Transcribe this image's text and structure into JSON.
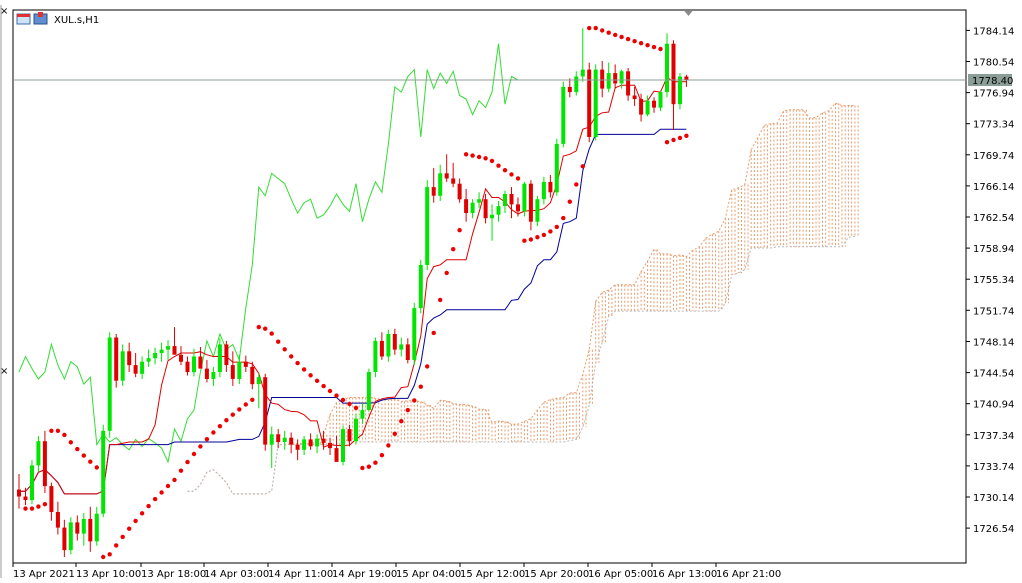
{
  "chart_data": {
    "type": "candlestick",
    "symbol_label": "XUL.s,H1",
    "current_price": "1778.40",
    "ylim": [
      1722.5,
      1786.5
    ],
    "y_ticks": [
      "1784.14",
      "1780.54",
      "1776.94",
      "1773.34",
      "1769.74",
      "1766.14",
      "1762.54",
      "1758.94",
      "1755.34",
      "1751.74",
      "1748.14",
      "1744.54",
      "1740.94",
      "1737.34",
      "1733.74",
      "1730.14",
      "1726.54"
    ],
    "x_ticks": [
      "13 Apr 2021",
      "13 Apr 10:00",
      "13 Apr 18:00",
      "14 Apr 03:00",
      "14 Apr 11:00",
      "14 Apr 19:00",
      "15 Apr 04:00",
      "15 Apr 12:00",
      "15 Apr 20:00",
      "16 Apr 05:00",
      "16 Apr 13:00",
      "16 Apr 21:00"
    ],
    "colors": {
      "bull": "#00e600",
      "bear": "#e00000",
      "tenkan": "#e00000",
      "kijun": "#000099",
      "chikou": "#33dd33",
      "cloud_a": "#e89a6a",
      "cloud_b": "#b8b8b8",
      "sar": "#ee0000",
      "price_line": "#8c9c96",
      "grid": "#000000"
    },
    "ohlc": [
      [
        1731.0,
        1732.8,
        1728.8,
        1730.2
      ],
      [
        1730.2,
        1731.2,
        1729.2,
        1729.8
      ],
      [
        1729.8,
        1734.4,
        1729.3,
        1733.8
      ],
      [
        1733.8,
        1737.2,
        1733.0,
        1736.6
      ],
      [
        1736.6,
        1737.8,
        1730.6,
        1731.4
      ],
      [
        1731.4,
        1731.8,
        1727.4,
        1728.4
      ],
      [
        1728.4,
        1729.6,
        1725.8,
        1726.6
      ],
      [
        1726.6,
        1727.5,
        1723.2,
        1724.0
      ],
      [
        1724.0,
        1727.8,
        1723.5,
        1727.2
      ],
      [
        1727.2,
        1728.0,
        1725.1,
        1725.9
      ],
      [
        1725.9,
        1728.3,
        1724.5,
        1727.6
      ],
      [
        1727.6,
        1729.0,
        1723.8,
        1725.0
      ],
      [
        1725.0,
        1729.0,
        1724.5,
        1728.2
      ],
      [
        1728.2,
        1738.5,
        1727.8,
        1737.8
      ],
      [
        1737.8,
        1749.2,
        1737.0,
        1748.6
      ],
      [
        1748.6,
        1749.0,
        1742.8,
        1743.6
      ],
      [
        1743.6,
        1747.8,
        1743.0,
        1747.0
      ],
      [
        1747.0,
        1748.0,
        1744.6,
        1745.4
      ],
      [
        1745.4,
        1746.8,
        1744.0,
        1744.4
      ],
      [
        1744.4,
        1746.4,
        1743.8,
        1745.8
      ],
      [
        1745.8,
        1747.2,
        1745.2,
        1746.2
      ],
      [
        1746.2,
        1747.4,
        1745.5,
        1746.8
      ],
      [
        1746.8,
        1748.0,
        1745.8,
        1747.2
      ],
      [
        1747.2,
        1748.3,
        1746.0,
        1747.6
      ],
      [
        1747.6,
        1749.8,
        1746.8,
        1746.6
      ],
      [
        1746.6,
        1747.6,
        1745.4,
        1745.8
      ],
      [
        1745.8,
        1746.4,
        1744.2,
        1744.6
      ],
      [
        1744.6,
        1747.3,
        1744.1,
        1746.4
      ],
      [
        1746.4,
        1747.5,
        1745.4,
        1745.0
      ],
      [
        1745.0,
        1746.0,
        1743.4,
        1743.8
      ],
      [
        1743.8,
        1745.2,
        1743.0,
        1744.6
      ],
      [
        1744.6,
        1748.5,
        1744.0,
        1747.8
      ],
      [
        1747.8,
        1748.2,
        1744.6,
        1745.4
      ],
      [
        1745.4,
        1747.0,
        1743.0,
        1743.8
      ],
      [
        1743.8,
        1746.6,
        1743.2,
        1745.8
      ],
      [
        1745.8,
        1746.5,
        1744.6,
        1745.2
      ],
      [
        1745.2,
        1745.8,
        1742.6,
        1743.2
      ],
      [
        1743.2,
        1744.4,
        1740.4,
        1744.0
      ],
      [
        1744.0,
        1744.4,
        1735.5,
        1736.2
      ],
      [
        1736.2,
        1738.3,
        1733.5,
        1737.4
      ],
      [
        1737.4,
        1738.0,
        1735.8,
        1736.5
      ],
      [
        1736.5,
        1737.8,
        1735.6,
        1737.0
      ],
      [
        1737.0,
        1737.6,
        1735.2,
        1736.2
      ],
      [
        1736.2,
        1736.8,
        1734.4,
        1735.6
      ],
      [
        1735.6,
        1737.2,
        1735.0,
        1736.8
      ],
      [
        1736.8,
        1737.5,
        1735.6,
        1736.0
      ],
      [
        1736.0,
        1737.4,
        1735.2,
        1736.9
      ],
      [
        1736.9,
        1737.8,
        1735.6,
        1736.4
      ],
      [
        1736.4,
        1737.0,
        1735.0,
        1735.8
      ],
      [
        1735.8,
        1737.2,
        1734.6,
        1734.2
      ],
      [
        1734.2,
        1738.4,
        1733.8,
        1738.0
      ],
      [
        1738.0,
        1738.5,
        1736.0,
        1736.6
      ],
      [
        1736.6,
        1739.8,
        1736.2,
        1739.2
      ],
      [
        1739.2,
        1741.0,
        1738.6,
        1740.2
      ],
      [
        1740.2,
        1745.0,
        1740.0,
        1744.6
      ],
      [
        1744.6,
        1748.6,
        1744.0,
        1748.2
      ],
      [
        1748.2,
        1749.2,
        1746.0,
        1746.4
      ],
      [
        1746.4,
        1749.5,
        1745.8,
        1749.0
      ],
      [
        1749.0,
        1749.6,
        1746.6,
        1747.2
      ],
      [
        1747.2,
        1748.6,
        1746.4,
        1747.8
      ],
      [
        1747.8,
        1748.5,
        1745.6,
        1746.0
      ],
      [
        1746.0,
        1752.6,
        1745.4,
        1752.0
      ],
      [
        1752.0,
        1757.6,
        1751.4,
        1757.0
      ],
      [
        1757.0,
        1766.8,
        1756.4,
        1766.0
      ],
      [
        1766.0,
        1768.2,
        1764.2,
        1765.0
      ],
      [
        1765.0,
        1768.6,
        1764.4,
        1767.6
      ],
      [
        1767.6,
        1769.8,
        1766.6,
        1767.0
      ],
      [
        1767.0,
        1768.8,
        1766.0,
        1766.4
      ],
      [
        1766.4,
        1767.0,
        1764.2,
        1764.6
      ],
      [
        1764.6,
        1765.8,
        1762.0,
        1763.0
      ],
      [
        1763.0,
        1764.6,
        1762.4,
        1764.2
      ],
      [
        1764.2,
        1765.4,
        1763.6,
        1764.6
      ],
      [
        1764.6,
        1765.2,
        1761.8,
        1762.4
      ],
      [
        1762.4,
        1764.0,
        1759.8,
        1762.8
      ],
      [
        1762.8,
        1764.4,
        1762.0,
        1763.8
      ],
      [
        1763.8,
        1765.6,
        1763.0,
        1765.2
      ],
      [
        1765.2,
        1766.0,
        1762.4,
        1764.0
      ],
      [
        1764.0,
        1764.8,
        1762.6,
        1763.2
      ],
      [
        1763.2,
        1766.6,
        1762.6,
        1766.4
      ],
      [
        1766.4,
        1766.8,
        1761.0,
        1762.0
      ],
      [
        1762.0,
        1765.0,
        1761.5,
        1764.6
      ],
      [
        1764.6,
        1767.2,
        1764.0,
        1766.6
      ],
      [
        1766.6,
        1767.4,
        1764.8,
        1765.4
      ],
      [
        1765.4,
        1771.6,
        1765.0,
        1771.0
      ],
      [
        1771.0,
        1778.2,
        1770.6,
        1777.6
      ],
      [
        1777.6,
        1778.6,
        1776.4,
        1777.0
      ],
      [
        1777.0,
        1779.4,
        1776.6,
        1778.8
      ],
      [
        1778.8,
        1784.4,
        1778.2,
        1779.6
      ],
      [
        1779.6,
        1780.4,
        1771.2,
        1771.8
      ],
      [
        1771.8,
        1780.2,
        1771.4,
        1779.6
      ],
      [
        1779.6,
        1780.6,
        1776.4,
        1777.4
      ],
      [
        1777.4,
        1780.4,
        1777.0,
        1779.2
      ],
      [
        1779.2,
        1780.2,
        1777.4,
        1778.0
      ],
      [
        1778.0,
        1779.6,
        1777.4,
        1779.4
      ],
      [
        1779.4,
        1779.8,
        1776.0,
        1776.6
      ],
      [
        1776.6,
        1777.6,
        1775.4,
        1776.2
      ],
      [
        1776.2,
        1776.8,
        1773.6,
        1774.4
      ],
      [
        1774.4,
        1776.6,
        1774.2,
        1776.0
      ],
      [
        1776.0,
        1776.4,
        1774.6,
        1775.2
      ],
      [
        1775.2,
        1777.2,
        1774.8,
        1777.0
      ],
      [
        1777.0,
        1783.8,
        1776.4,
        1782.6
      ],
      [
        1782.6,
        1783.0,
        1772.6,
        1775.6
      ],
      [
        1775.6,
        1779.2,
        1775.0,
        1778.8
      ],
      [
        1778.8,
        1779.0,
        1777.6,
        1778.4
      ]
    ]
  }
}
